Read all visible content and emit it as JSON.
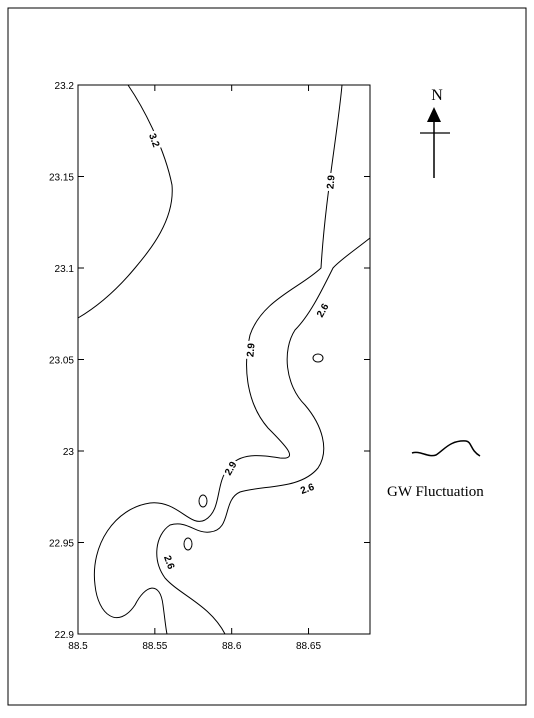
{
  "chart_data": {
    "type": "contour",
    "xlim": [
      88.5,
      88.69
    ],
    "ylim": [
      22.9,
      23.2
    ],
    "xticks": [
      88.5,
      88.55,
      88.6,
      88.65
    ],
    "yticks": [
      22.9,
      22.95,
      23,
      23.05,
      23.1,
      23.15,
      23.2
    ],
    "contours": [
      {
        "level": 3.2
      },
      {
        "level": 2.9
      },
      {
        "level": 2.6
      }
    ],
    "north_label": "N",
    "legend": "GW Fluctuation"
  }
}
